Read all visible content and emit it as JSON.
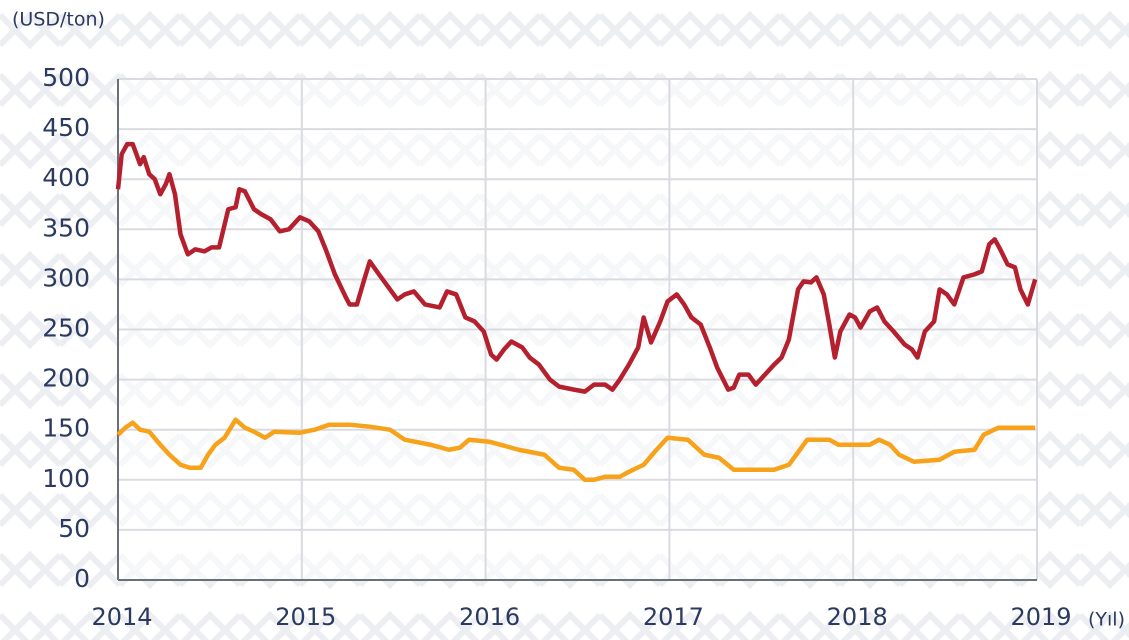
{
  "chart_data": {
    "type": "line",
    "y_label": "(USD/ton)",
    "x_label": "(Yıl)",
    "xlim": [
      2014,
      2019
    ],
    "xticks": [
      2014,
      2015,
      2016,
      2017,
      2018,
      2019
    ],
    "ylim": [
      0,
      500
    ],
    "yticks": [
      0,
      50,
      100,
      150,
      200,
      250,
      300,
      350,
      400,
      450,
      500
    ],
    "grid": true,
    "series": [
      {
        "color": "#b5202e",
        "x": [
          2014.0,
          2014.02,
          2014.05,
          2014.08,
          2014.1,
          2014.12,
          2014.14,
          2014.17,
          2014.2,
          2014.23,
          2014.26,
          2014.28,
          2014.31,
          2014.34,
          2014.38,
          2014.42,
          2014.47,
          2014.51,
          2014.55,
          2014.6,
          2014.64,
          2014.66,
          2014.69,
          2014.74,
          2014.78,
          2014.83,
          2014.88,
          2014.93,
          2014.99,
          2015.04,
          2015.09,
          2015.13,
          2015.18,
          2015.24,
          2015.26,
          2015.3,
          2015.34,
          2015.37,
          2015.42,
          2015.48,
          2015.52,
          2015.56,
          2015.61,
          2015.67,
          2015.75,
          2015.79,
          2015.84,
          2015.89,
          2015.94,
          2015.99,
          2016.03,
          2016.06,
          2016.1,
          2016.14,
          2016.2,
          2016.24,
          2016.29,
          2016.35,
          2016.4,
          2016.48,
          2016.54,
          2016.59,
          2016.65,
          2016.69,
          2016.73,
          2016.78,
          2016.83,
          2016.86,
          2016.9,
          2016.95,
          2016.99,
          2017.04,
          2017.08,
          2017.12,
          2017.17,
          2017.22,
          2017.26,
          2017.32,
          2017.35,
          2017.38,
          2017.43,
          2017.47,
          2017.52,
          2017.57,
          2017.61,
          2017.65,
          2017.7,
          2017.73,
          2017.77,
          2017.8,
          2017.84,
          2017.87,
          2017.9,
          2017.93,
          2017.98,
          2018.01,
          2018.04,
          2018.09,
          2018.13,
          2018.17,
          2018.22,
          2018.28,
          2018.32,
          2018.35,
          2018.39,
          2018.44,
          2018.47,
          2018.51,
          2018.55,
          2018.6,
          2018.66,
          2018.7,
          2018.74,
          2018.77,
          2018.8,
          2018.84,
          2018.88,
          2018.91,
          2018.95,
          2018.99
        ],
        "values": [
          390,
          425,
          435,
          435,
          425,
          415,
          422,
          405,
          400,
          385,
          395,
          405,
          385,
          345,
          325,
          330,
          328,
          332,
          332,
          370,
          372,
          390,
          388,
          370,
          365,
          360,
          348,
          350,
          362,
          358,
          348,
          330,
          305,
          282,
          275,
          275,
          300,
          318,
          305,
          290,
          280,
          285,
          288,
          275,
          272,
          288,
          285,
          262,
          258,
          248,
          225,
          220,
          230,
          238,
          232,
          222,
          215,
          200,
          193,
          190,
          188,
          195,
          195,
          190,
          200,
          215,
          232,
          262,
          237,
          258,
          278,
          285,
          275,
          262,
          255,
          232,
          212,
          190,
          192,
          205,
          205,
          195,
          205,
          215,
          222,
          240,
          290,
          298,
          297,
          302,
          285,
          255,
          222,
          248,
          265,
          262,
          252,
          268,
          272,
          258,
          248,
          235,
          230,
          222,
          248,
          258,
          290,
          285,
          275,
          302,
          305,
          308,
          335,
          340,
          330,
          315,
          312,
          290,
          275,
          300
        ]
      },
      {
        "color": "#f7a21b",
        "x": [
          2014.0,
          2014.04,
          2014.08,
          2014.12,
          2014.17,
          2014.23,
          2014.28,
          2014.34,
          2014.39,
          2014.45,
          2014.49,
          2014.53,
          2014.58,
          2014.64,
          2014.69,
          2014.74,
          2014.8,
          2014.85,
          2014.99,
          2015.07,
          2015.15,
          2015.26,
          2015.37,
          2015.48,
          2015.56,
          2015.7,
          2015.8,
          2015.86,
          2015.91,
          2016.02,
          2016.08,
          2016.18,
          2016.32,
          2016.4,
          2016.48,
          2016.54,
          2016.59,
          2016.65,
          2016.73,
          2016.78,
          2016.86,
          2016.93,
          2016.99,
          2017.1,
          2017.19,
          2017.27,
          2017.35,
          2017.49,
          2017.57,
          2017.65,
          2017.71,
          2017.75,
          2017.87,
          2017.92,
          2018.09,
          2018.14,
          2018.2,
          2018.25,
          2018.33,
          2018.47,
          2018.55,
          2018.66,
          2018.71,
          2018.79,
          2018.99
        ],
        "values": [
          145,
          152,
          157,
          150,
          148,
          135,
          125,
          115,
          112,
          112,
          125,
          135,
          142,
          160,
          152,
          148,
          142,
          148,
          147,
          150,
          155,
          155,
          153,
          150,
          140,
          135,
          130,
          132,
          140,
          138,
          135,
          130,
          125,
          112,
          110,
          100,
          100,
          103,
          103,
          108,
          115,
          130,
          142,
          140,
          125,
          122,
          110,
          110,
          110,
          115,
          130,
          140,
          140,
          135,
          135,
          140,
          135,
          125,
          118,
          120,
          128,
          130,
          145,
          152,
          152
        ]
      }
    ]
  }
}
